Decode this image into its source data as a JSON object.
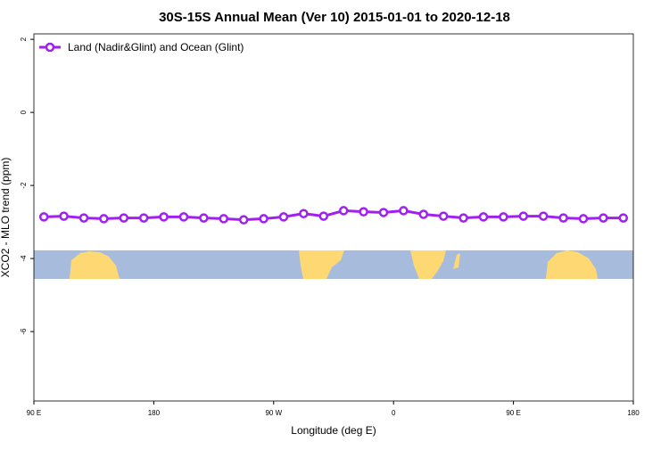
{
  "chart_data": {
    "type": "line",
    "title": "30S-15S Annual Mean (Ver 10)   2015-01-01 to 2020-12-18",
    "x_label": "Longitude (deg E)",
    "y_label": "XCO2 - MLO trend (ppm)",
    "x": [
      97.5,
      112.5,
      127.5,
      142.5,
      157.5,
      172.5,
      187.5,
      202.5,
      217.5,
      232.5,
      247.5,
      262.5,
      277.5,
      292.5,
      307.5,
      322.5,
      337.5,
      352.5,
      367.5,
      382.5,
      397.5,
      412.5,
      427.5,
      442.5,
      457.5,
      472.5,
      487.5,
      502.5,
      517.5,
      532.5
    ],
    "series": [
      {
        "name": "Land (Nadir&Glint) and Ocean (Glint)",
        "color": "#a020f0",
        "values": [
          -2.86,
          -2.84,
          -2.89,
          -2.91,
          -2.89,
          -2.89,
          -2.86,
          -2.86,
          -2.89,
          -2.91,
          -2.94,
          -2.91,
          -2.86,
          -2.77,
          -2.84,
          -2.69,
          -2.72,
          -2.74,
          -2.69,
          -2.79,
          -2.84,
          -2.89,
          -2.86,
          -2.86,
          -2.84,
          -2.84,
          -2.89,
          -2.91,
          -2.89,
          -2.89
        ]
      }
    ],
    "xlim": [
      90,
      540
    ],
    "xticks": [
      {
        "value": 90,
        "label": "90 E"
      },
      180,
      {
        "value": 270,
        "label": "90 W"
      },
      {
        "value": 360,
        "label": "0"
      },
      {
        "value": 450,
        "label": "90 E"
      },
      {
        "value": 540,
        "label": "180"
      }
    ],
    "ylim": [
      -7.9,
      2.15
    ],
    "yticks": [
      2,
      0,
      -2,
      -4,
      -6
    ],
    "legend": "top-left"
  }
}
